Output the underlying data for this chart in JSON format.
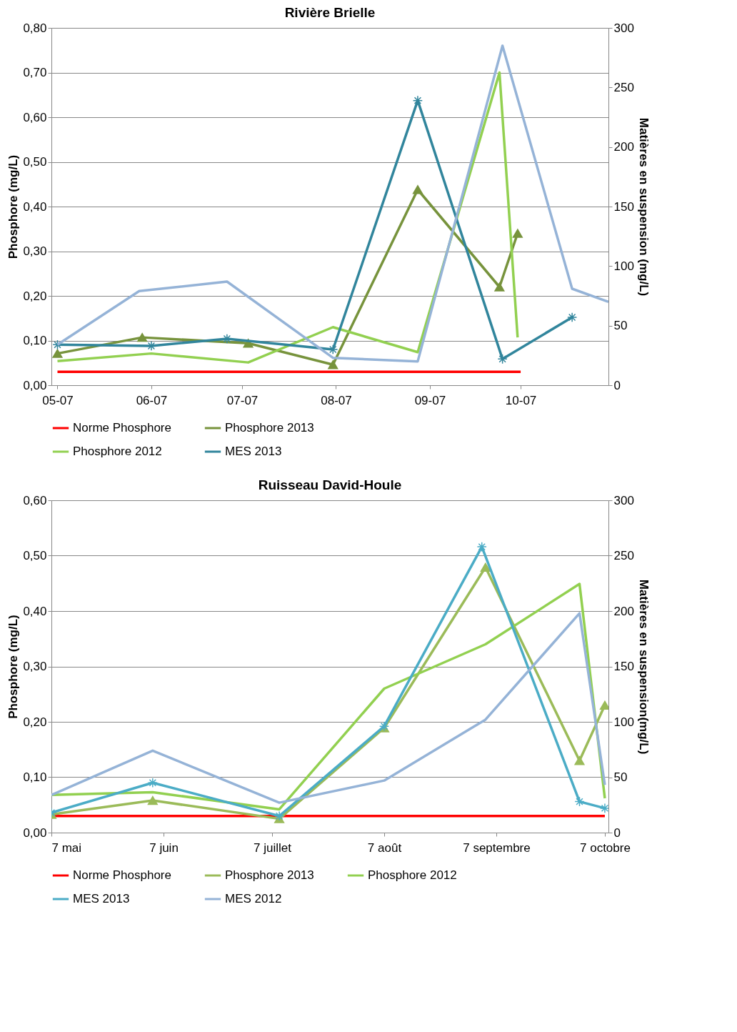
{
  "chart_data": [
    {
      "type": "line",
      "title": "Rivière Brielle",
      "ylabel": "Phosphore (mg/L)",
      "y2label": "Matières en suspension (mg/L)",
      "xlim": [
        "--05-05",
        "--11-05"
      ],
      "xticks": [
        {
          "value": "--05-07",
          "label": "05-07"
        },
        {
          "value": "--06-07",
          "label": "06-07"
        },
        {
          "value": "--07-07",
          "label": "07-07"
        },
        {
          "value": "--08-07",
          "label": "08-07"
        },
        {
          "value": "--09-07",
          "label": "09-07"
        },
        {
          "value": "--10-07",
          "label": "10-07"
        }
      ],
      "ylim": [
        0,
        0.8
      ],
      "yticks": [
        {
          "value": 0,
          "label": "0,00"
        },
        {
          "value": 0.1,
          "label": "0,10"
        },
        {
          "value": 0.2,
          "label": "0,20"
        },
        {
          "value": 0.3,
          "label": "0,30"
        },
        {
          "value": 0.4,
          "label": "0,40"
        },
        {
          "value": 0.5,
          "label": "0,50"
        },
        {
          "value": 0.6,
          "label": "0,60"
        },
        {
          "value": 0.7,
          "label": "0,70"
        },
        {
          "value": 0.8,
          "label": "0,80"
        }
      ],
      "y2lim": [
        0,
        300
      ],
      "y2ticks": [
        0,
        50,
        100,
        150,
        200,
        250,
        300
      ],
      "grid": "y",
      "legend": "bottom",
      "series": [
        {
          "name": "Norme Phosphore",
          "color": "#ff0000",
          "x": [
            "--05-07",
            "--10-07"
          ],
          "values": [
            0.03,
            0.03
          ],
          "marker": "none"
        },
        {
          "name": "Phosphore 2013",
          "color": "#77933c",
          "x": [
            "--05-07",
            "--06-04",
            "--07-09",
            "--08-06",
            "--09-03",
            "--09-30",
            "--10-06"
          ],
          "values": [
            0.071,
            0.107,
            0.094,
            0.046,
            0.438,
            0.22,
            0.34
          ],
          "marker": "triangle"
        },
        {
          "name": "Phosphore 2012",
          "color": "#92d050",
          "x": [
            "--05-07",
            "--06-07",
            "--07-09",
            "--08-06",
            "--09-03",
            "--09-30",
            "--10-06"
          ],
          "values": [
            0.054,
            0.071,
            0.051,
            0.13,
            0.074,
            0.7,
            0.107
          ],
          "marker": "none"
        },
        {
          "name": "MES 2013",
          "color": "#31859c",
          "x": [
            "--05-07",
            "--06-07",
            "--07-02",
            "--08-06",
            "--09-03",
            "--10-01",
            "--10-24"
          ],
          "values": [
            34,
            33,
            39,
            30,
            239,
            22,
            57
          ],
          "marker": "cross",
          "axis": "y2"
        },
        {
          "color": "#95b3d7",
          "x": [
            "--05-07",
            "--06-03",
            "--07-02",
            "--08-06",
            "--09-03",
            "--10-01",
            "--10-24",
            "--11-05"
          ],
          "values": [
            34,
            79,
            87,
            23,
            20,
            285,
            81,
            70
          ],
          "marker": "none",
          "axis": "y2"
        }
      ]
    },
    {
      "type": "line",
      "title": "Ruisseau David-Houle",
      "ylabel": "Phosphore (mg/L)",
      "y2label": "Matières en suspension(mg/L)",
      "xlim": [
        "--05-07",
        "--10-08"
      ],
      "xticks": [
        {
          "value": "--05-07",
          "label": "7 mai"
        },
        {
          "value": "--06-07",
          "label": "7 juin"
        },
        {
          "value": "--07-07",
          "label": "7 juillet"
        },
        {
          "value": "--08-07",
          "label": "7 août"
        },
        {
          "value": "--09-07",
          "label": "7 septembre"
        },
        {
          "value": "--10-07",
          "label": "7 octobre"
        }
      ],
      "ylim": [
        0,
        0.6
      ],
      "yticks": [
        {
          "value": 0,
          "label": "0,00"
        },
        {
          "value": 0.1,
          "label": "0,10"
        },
        {
          "value": 0.2,
          "label": "0,20"
        },
        {
          "value": 0.3,
          "label": "0,30"
        },
        {
          "value": 0.4,
          "label": "0,40"
        },
        {
          "value": 0.5,
          "label": "0,50"
        },
        {
          "value": 0.6,
          "label": "0,60"
        }
      ],
      "y2lim": [
        0,
        300
      ],
      "y2ticks": [
        0,
        50,
        100,
        150,
        200,
        250,
        300
      ],
      "grid": "y",
      "legend": "bottom",
      "series": [
        {
          "name": "Norme Phosphore",
          "color": "#ff0000",
          "x": [
            "--05-07",
            "--10-07"
          ],
          "values": [
            0.03,
            0.03
          ],
          "marker": "none"
        },
        {
          "name": "Phosphore 2013",
          "color": "#9bbb59",
          "x": [
            "--05-07",
            "--06-04",
            "--07-09",
            "--08-07",
            "--09-04",
            "--09-30",
            "--10-07"
          ],
          "values": [
            0.033,
            0.058,
            0.025,
            0.189,
            0.479,
            0.13,
            0.23
          ],
          "marker": "triangle"
        },
        {
          "name": "Phosphore 2012",
          "color": "#92d050",
          "x": [
            "--05-07",
            "--06-04",
            "--07-09",
            "--08-07",
            "--09-04",
            "--09-30",
            "--10-07"
          ],
          "values": [
            0.068,
            0.073,
            0.042,
            0.26,
            0.34,
            0.449,
            0.062
          ],
          "marker": "none"
        },
        {
          "name": "MES 2013",
          "color": "#4bacc6",
          "x": [
            "--05-07",
            "--06-04",
            "--07-09",
            "--08-07",
            "--09-03",
            "--09-30",
            "--10-07"
          ],
          "values": [
            18,
            45,
            15,
            96,
            258,
            28,
            22
          ],
          "marker": "cross",
          "axis": "y2"
        },
        {
          "name": "MES 2012",
          "color": "#95b3d7",
          "x": [
            "--05-07",
            "--06-04",
            "--07-09",
            "--08-07",
            "--09-04",
            "--09-30",
            "--10-07"
          ],
          "values": [
            34,
            74,
            27,
            47,
            102,
            198,
            43
          ],
          "marker": "none",
          "axis": "y2"
        }
      ]
    }
  ]
}
